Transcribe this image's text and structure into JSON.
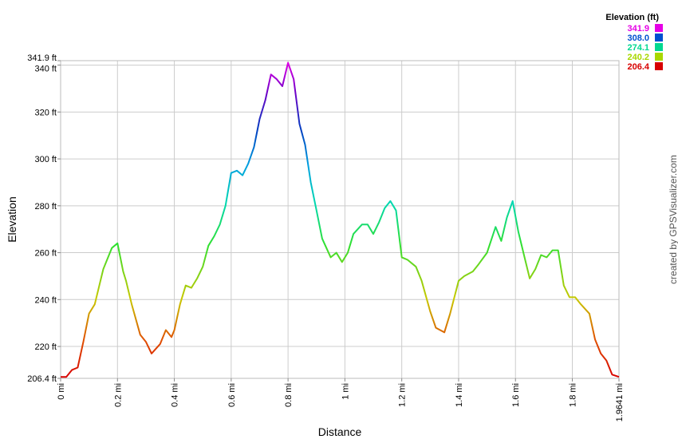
{
  "chart_data": {
    "type": "line",
    "xlabel": "Distance",
    "ylabel": "Elevation",
    "x_unit": "mi",
    "y_unit": "ft",
    "xlim": [
      0,
      1.9641
    ],
    "ylim": [
      206.4,
      341.9
    ],
    "x_ticks": [
      0,
      0.2,
      0.4,
      0.6,
      0.8,
      1,
      1.2,
      1.4,
      1.6,
      1.8,
      1.9641
    ],
    "x_tick_labels": [
      "0 mi",
      "0.2 mi",
      "0.4 mi",
      "0.6 mi",
      "0.8 mi",
      "1 mi",
      "1.2 mi",
      "1.4 mi",
      "1.6 mi",
      "1.8 mi",
      "1.9641 mi"
    ],
    "y_ticks": [
      206.4,
      220,
      240,
      260,
      280,
      300,
      320,
      340,
      341.9
    ],
    "y_tick_labels": [
      "206.4 ft",
      "220 ft",
      "240 ft",
      "260 ft",
      "280 ft",
      "300 ft",
      "320 ft",
      "340 ft",
      "341.9 ft"
    ],
    "grid": true,
    "legend": {
      "title": "Elevation (ft)",
      "placement": "top-right",
      "entries": [
        {
          "label": "341.9",
          "color": "#e600e6"
        },
        {
          "label": "308.0",
          "color": "#0050d0"
        },
        {
          "label": "274.1",
          "color": "#00d890"
        },
        {
          "label": "240.2",
          "color": "#a8d800"
        },
        {
          "label": "206.4",
          "color": "#d80000"
        }
      ]
    },
    "x": [
      0,
      0.02,
      0.04,
      0.06,
      0.08,
      0.1,
      0.12,
      0.15,
      0.18,
      0.2,
      0.22,
      0.23,
      0.25,
      0.28,
      0.3,
      0.32,
      0.35,
      0.37,
      0.39,
      0.4,
      0.42,
      0.44,
      0.46,
      0.48,
      0.5,
      0.52,
      0.54,
      0.56,
      0.58,
      0.6,
      0.62,
      0.64,
      0.66,
      0.68,
      0.7,
      0.72,
      0.74,
      0.76,
      0.78,
      0.8,
      0.82,
      0.84,
      0.86,
      0.88,
      0.9,
      0.92,
      0.95,
      0.97,
      0.99,
      1.01,
      1.03,
      1.06,
      1.08,
      1.1,
      1.12,
      1.14,
      1.16,
      1.18,
      1.2,
      1.22,
      1.25,
      1.27,
      1.3,
      1.32,
      1.35,
      1.37,
      1.4,
      1.42,
      1.45,
      1.47,
      1.5,
      1.53,
      1.55,
      1.57,
      1.59,
      1.61,
      1.63,
      1.65,
      1.67,
      1.69,
      1.71,
      1.73,
      1.75,
      1.77,
      1.79,
      1.81,
      1.83,
      1.86,
      1.88,
      1.9,
      1.92,
      1.94,
      1.9641
    ],
    "y": [
      207,
      207,
      210,
      211,
      222,
      234,
      238,
      253,
      262,
      264,
      252,
      248,
      238,
      225,
      222,
      217,
      221,
      227,
      224,
      227,
      238,
      246,
      245,
      249,
      254,
      263,
      267,
      272,
      280,
      294,
      295,
      293,
      298,
      305,
      317,
      325,
      336,
      334,
      331,
      341,
      334,
      315,
      306,
      290,
      278,
      266,
      258,
      260,
      256,
      260,
      268,
      272,
      272,
      268,
      273,
      279,
      282,
      278,
      258,
      257,
      254,
      248,
      235,
      228,
      226,
      234,
      248,
      250,
      252,
      255,
      260,
      271,
      265,
      275,
      282,
      269,
      259,
      249,
      253,
      259,
      258,
      261,
      261,
      246,
      241,
      241,
      238,
      234,
      223,
      217,
      214,
      208,
      207
    ]
  },
  "credit": "created by GPSVisualizer.com"
}
